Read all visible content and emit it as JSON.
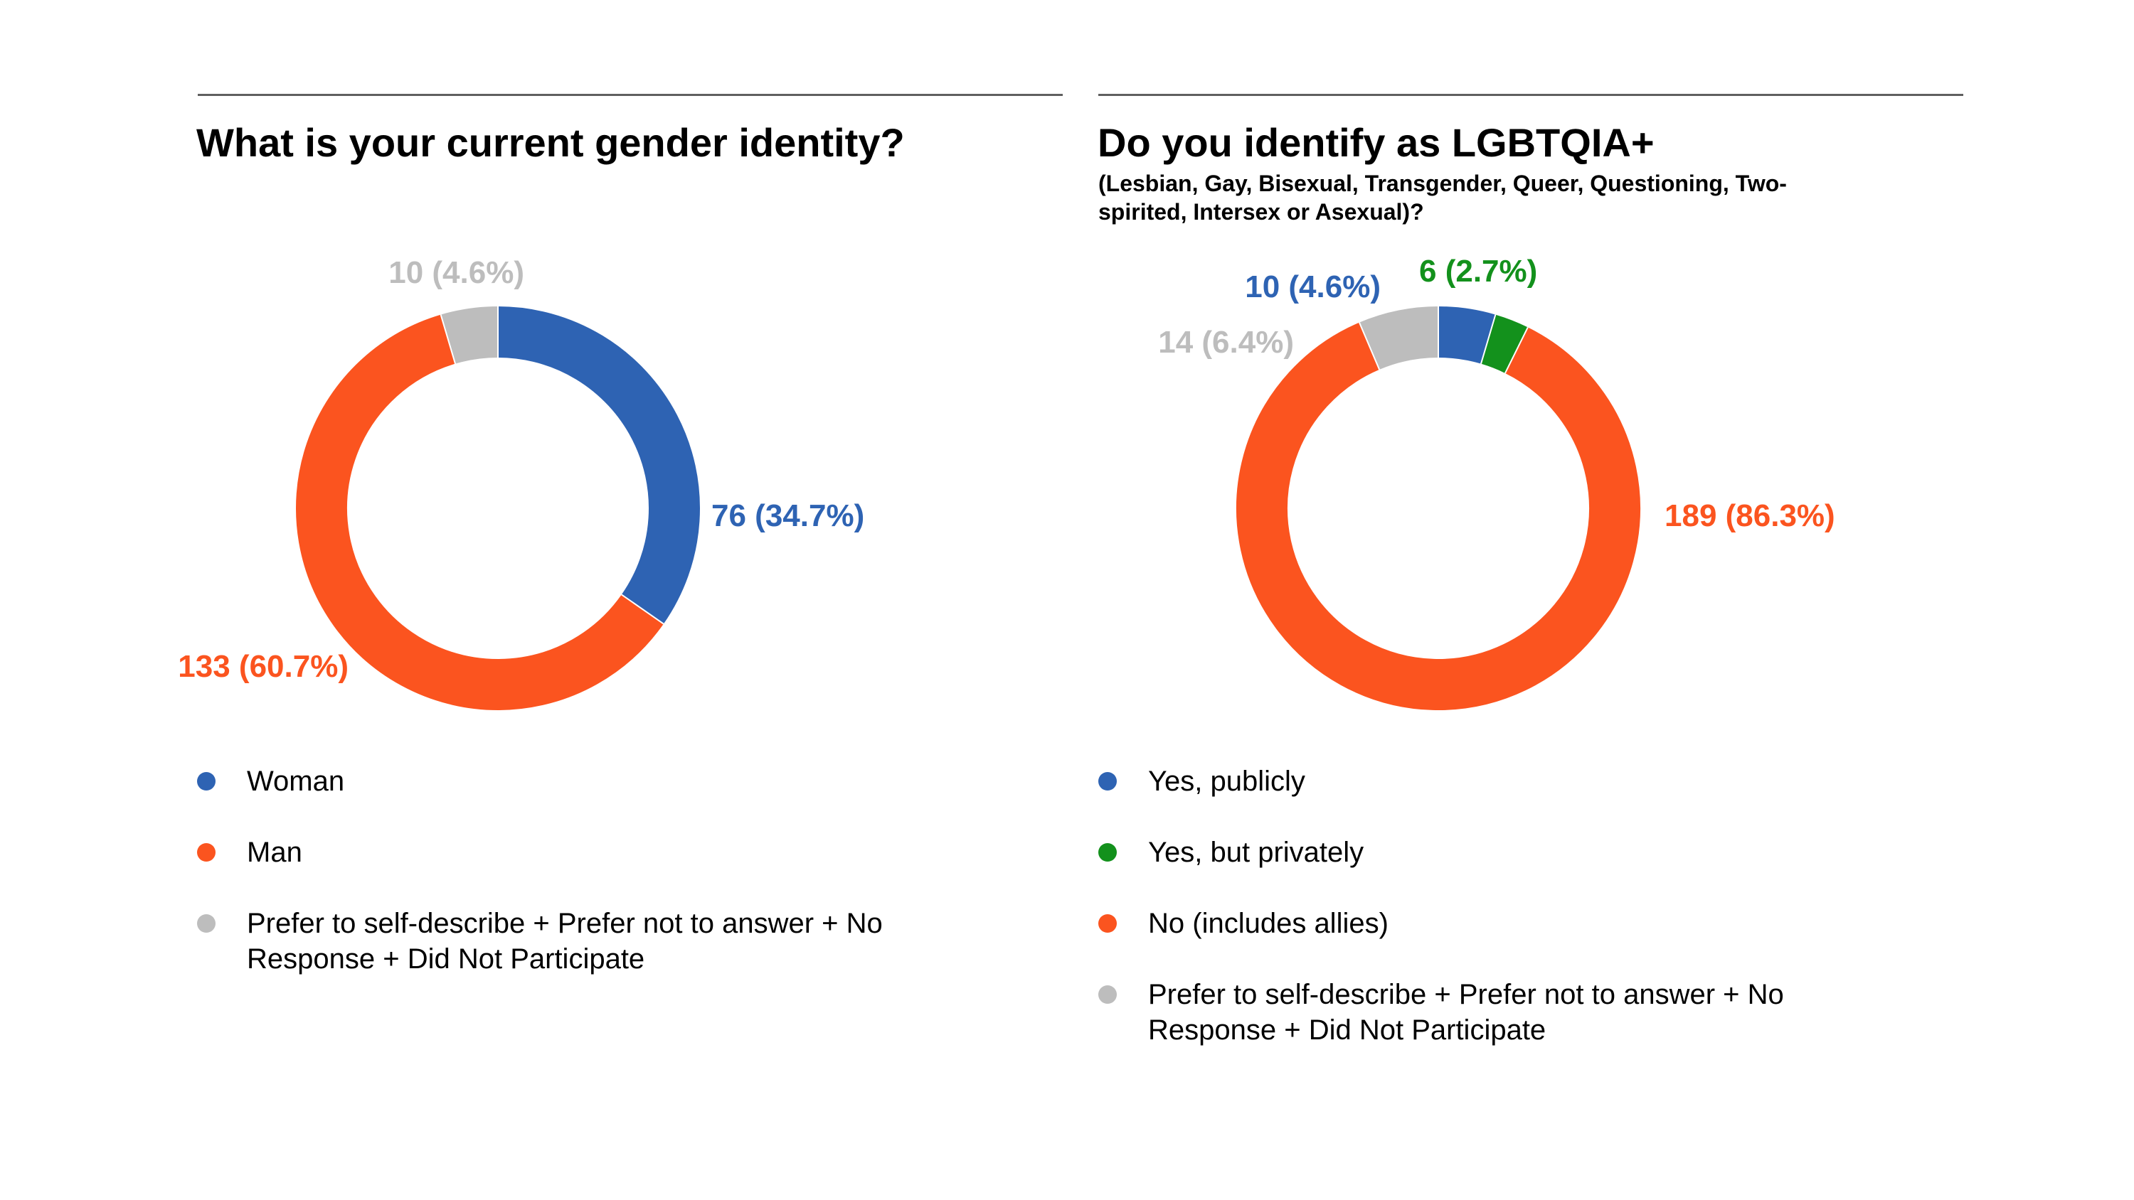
{
  "chart_data": [
    {
      "type": "pie",
      "title": "What is your current gender identity?",
      "subtitle": "",
      "categories": [
        "Woman",
        "Man",
        "Prefer to self-describe + Prefer not to answer + No Response + Did Not Participate"
      ],
      "values": [
        76,
        133,
        10
      ],
      "labels": [
        "76 (34.7%)",
        "133 (60.7%)",
        "10 (4.6%)"
      ],
      "colors": [
        "#2e63b3",
        "#fb541f",
        "#bdbdbd"
      ],
      "legend_position": "bottom"
    },
    {
      "type": "pie",
      "title": "Do you identify as LGBTQIA+",
      "subtitle": "(Lesbian, Gay, Bisexual, Transgender, Queer, Questioning, Two-spirited, Intersex or Asexual)?",
      "categories": [
        "Yes, publicly",
        "Yes, but privately",
        "No (includes allies)",
        "Prefer to self-describe + Prefer not to answer + No Response + Did Not Participate"
      ],
      "values": [
        10,
        6,
        189,
        14
      ],
      "labels": [
        "10 (4.6%)",
        "6 (2.7%)",
        "189 (86.3%)",
        "14 (6.4%)"
      ],
      "colors": [
        "#2e63b3",
        "#13911c",
        "#fb541f",
        "#bdbdbd"
      ],
      "legend_position": "bottom"
    }
  ]
}
